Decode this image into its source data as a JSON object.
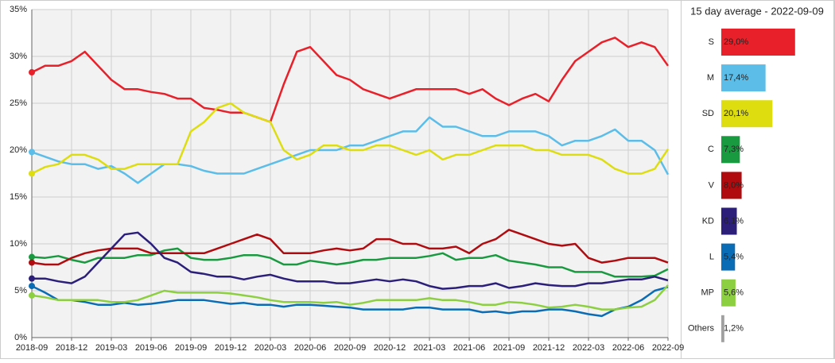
{
  "chart_data": [
    {
      "type": "line",
      "x": [
        "2018-09",
        "2018-10",
        "2018-11",
        "2018-12",
        "2019-01",
        "2019-02",
        "2019-03",
        "2019-04",
        "2019-05",
        "2019-06",
        "2019-07",
        "2019-08",
        "2019-09",
        "2019-10",
        "2019-11",
        "2019-12",
        "2020-01",
        "2020-02",
        "2020-03",
        "2020-04",
        "2020-05",
        "2020-06",
        "2020-07",
        "2020-08",
        "2020-09",
        "2020-10",
        "2020-11",
        "2020-12",
        "2021-01",
        "2021-02",
        "2021-03",
        "2021-04",
        "2021-05",
        "2021-06",
        "2021-07",
        "2021-08",
        "2021-09",
        "2021-10",
        "2021-11",
        "2021-12",
        "2022-01",
        "2022-02",
        "2022-03",
        "2022-04",
        "2022-05",
        "2022-06",
        "2022-07",
        "2022-08",
        "2022-09"
      ],
      "xlim": [
        "2018-09",
        "2022-09"
      ],
      "xticks": [
        "2018-09",
        "2018-12",
        "2019-03",
        "2019-06",
        "2019-09",
        "2019-12",
        "2020-03",
        "2020-06",
        "2020-09",
        "2020-12",
        "2021-03",
        "2021-06",
        "2021-09",
        "2021-12",
        "2022-03",
        "2022-06",
        "2022-09"
      ],
      "ylim": [
        0,
        35
      ],
      "yticks": [
        {
          "value": 0,
          "label": "0%"
        },
        {
          "value": 5,
          "label": "5%"
        },
        {
          "value": 10,
          "label": "10%"
        },
        {
          "value": 15,
          "label": "15%"
        },
        {
          "value": 20,
          "label": "20%"
        },
        {
          "value": 25,
          "label": "25%"
        },
        {
          "value": 30,
          "label": "30%"
        },
        {
          "value": 35,
          "label": "35%"
        }
      ],
      "grid": true,
      "series": [
        {
          "color": "#e8202a",
          "values": [
            28.3,
            29,
            29,
            29.5,
            30.5,
            29,
            27.5,
            26.5,
            26.5,
            26.2,
            26,
            25.5,
            25.5,
            24.5,
            24.3,
            24,
            24,
            23.5,
            23,
            27,
            30.5,
            31,
            29.5,
            28,
            27.5,
            26.5,
            26,
            25.5,
            26,
            26.5,
            26.5,
            26.5,
            26.5,
            26,
            26.5,
            25.5,
            24.8,
            25.5,
            26,
            25.2,
            27.5,
            29.5,
            30.5,
            31.5,
            32,
            31,
            31.5,
            31,
            29
          ]
        },
        {
          "color": "#5bbde8",
          "values": [
            19.8,
            19.3,
            18.8,
            18.5,
            18.5,
            18,
            18.3,
            17.5,
            16.5,
            17.5,
            18.5,
            18.5,
            18.3,
            17.8,
            17.5,
            17.5,
            17.5,
            18,
            18.5,
            19,
            19.5,
            20,
            20,
            20,
            20.5,
            20.5,
            21,
            21.5,
            22,
            22,
            23.5,
            22.5,
            22.5,
            22,
            21.5,
            21.5,
            22,
            22,
            22,
            21.5,
            20.5,
            21,
            21,
            21.5,
            22.2,
            21,
            21,
            20,
            17.4
          ]
        },
        {
          "color": "#dddd10",
          "values": [
            17.5,
            18.2,
            18.5,
            19.5,
            19.5,
            19,
            18,
            18,
            18.5,
            18.5,
            18.5,
            18.5,
            22,
            23,
            24.5,
            25,
            24,
            23.5,
            23,
            20,
            19,
            19.5,
            20.5,
            20.5,
            20,
            20,
            20.5,
            20.5,
            20,
            19.5,
            20,
            19,
            19.5,
            19.5,
            20,
            20.5,
            20.5,
            20.5,
            20,
            20,
            19.5,
            19.5,
            19.5,
            19,
            18,
            17.5,
            17.5,
            18,
            20.1
          ]
        },
        {
          "color": "#1a9a40",
          "values": [
            8.6,
            8.5,
            8.7,
            8.3,
            8,
            8.5,
            8.5,
            8.5,
            8.8,
            8.8,
            9.3,
            9.5,
            8.5,
            8.3,
            8.3,
            8.5,
            8.8,
            8.8,
            8.5,
            7.8,
            7.8,
            8.2,
            8,
            7.8,
            8,
            8.3,
            8.3,
            8.5,
            8.5,
            8.5,
            8.7,
            9,
            8.3,
            8.5,
            8.5,
            8.8,
            8.2,
            8,
            7.8,
            7.5,
            7.5,
            7,
            7,
            7,
            6.5,
            6.5,
            6.5,
            6.6,
            7.3
          ]
        },
        {
          "color": "#b00c10",
          "values": [
            8,
            7.8,
            7.8,
            8.5,
            9,
            9.3,
            9.5,
            9.5,
            9.5,
            9,
            9,
            9,
            9,
            9,
            9.5,
            10,
            10.5,
            11,
            10.5,
            9,
            9,
            9,
            9.3,
            9.5,
            9.3,
            9.5,
            10.5,
            10.5,
            10,
            10,
            9.5,
            9.5,
            9.7,
            9,
            10,
            10.5,
            11.5,
            11,
            10.5,
            10,
            9.8,
            10,
            8.5,
            8,
            8.2,
            8.5,
            8.5,
            8.5,
            8
          ]
        },
        {
          "color": "#2b1f7a",
          "values": [
            6.3,
            6.3,
            6,
            5.8,
            6.5,
            8,
            9.5,
            11,
            11.2,
            10,
            8.5,
            8,
            7,
            6.8,
            6.5,
            6.5,
            6.2,
            6.5,
            6.7,
            6.3,
            6,
            6,
            6,
            5.8,
            5.8,
            6,
            6.2,
            6,
            6.2,
            6,
            5.5,
            5.2,
            5.3,
            5.5,
            5.5,
            5.8,
            5.3,
            5.5,
            5.8,
            5.6,
            5.5,
            5.5,
            5.8,
            5.8,
            6,
            6.2,
            6.2,
            6.5,
            6.1
          ]
        },
        {
          "color": "#0a6cb4",
          "values": [
            5.5,
            4.8,
            4,
            4,
            3.8,
            3.5,
            3.5,
            3.7,
            3.5,
            3.6,
            3.8,
            4,
            4,
            4,
            3.8,
            3.6,
            3.7,
            3.5,
            3.5,
            3.3,
            3.5,
            3.5,
            3.4,
            3.3,
            3.2,
            3,
            3,
            3,
            3,
            3.2,
            3.2,
            3,
            3,
            3,
            2.7,
            2.8,
            2.6,
            2.8,
            2.8,
            3,
            3,
            2.8,
            2.5,
            2.3,
            3,
            3.3,
            4,
            5,
            5.4
          ]
        },
        {
          "color": "#8ccf40",
          "values": [
            4.5,
            4.3,
            4,
            4,
            4,
            4,
            3.8,
            3.8,
            4,
            4.5,
            5,
            4.8,
            4.8,
            4.8,
            4.8,
            4.7,
            4.5,
            4.3,
            4,
            3.8,
            3.8,
            3.8,
            3.7,
            3.8,
            3.5,
            3.7,
            4,
            4,
            4,
            4,
            4.2,
            4,
            4,
            3.8,
            3.5,
            3.5,
            3.8,
            3.7,
            3.5,
            3.2,
            3.3,
            3.5,
            3.3,
            3,
            3,
            3.2,
            3.3,
            4,
            5.6
          ]
        }
      ]
    },
    {
      "type": "hbar",
      "title": "15 day average - 2022-09-09",
      "categories": [
        "S",
        "M",
        "SD",
        "C",
        "V",
        "KD",
        "L",
        "MP",
        "Others"
      ],
      "values": [
        29.0,
        17.4,
        20.1,
        7.3,
        8.0,
        6.1,
        5.4,
        5.6,
        1.2
      ],
      "value_labels": [
        "29,0%",
        "17,4%",
        "20,1%",
        "7,3%",
        "8,0%",
        "6,1%",
        "5,4%",
        "5,6%",
        "1,2%"
      ],
      "colors": [
        "#e8202a",
        "#5bbde8",
        "#dddd10",
        "#1a9a40",
        "#b00c10",
        "#2b1f7a",
        "#0a6cb4",
        "#8ccf40",
        "#a0a0a0"
      ]
    }
  ]
}
